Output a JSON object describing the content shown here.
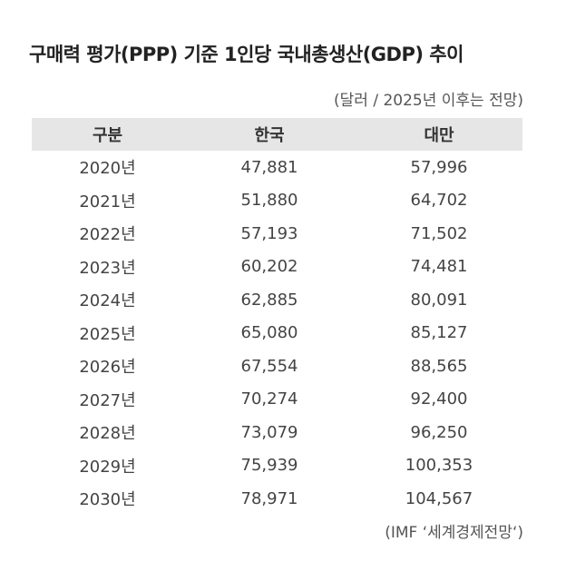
{
  "chart_data": {
    "type": "table",
    "title": "구매력 평가(PPP) 기준 1인당 국내총생산(GDP) 추이",
    "unit_note": "(달러 / 2025년 이후는 전망)",
    "columns": [
      "구분",
      "한국",
      "대만"
    ],
    "rows": [
      [
        "2020년",
        "47,881",
        "57,996"
      ],
      [
        "2021년",
        "51,880",
        "64,702"
      ],
      [
        "2022년",
        "57,193",
        "71,502"
      ],
      [
        "2023년",
        "60,202",
        "74,481"
      ],
      [
        "2024년",
        "62,885",
        "80,091"
      ],
      [
        "2025년",
        "65,080",
        "85,127"
      ],
      [
        "2026년",
        "67,554",
        "88,565"
      ],
      [
        "2027년",
        "70,274",
        "92,400"
      ],
      [
        "2028년",
        "73,079",
        "96,250"
      ],
      [
        "2029년",
        "75,939",
        "100,353"
      ],
      [
        "2030년",
        "78,971",
        "104,567"
      ]
    ],
    "source": "(IMF ‘세계경제전망‘)"
  },
  "colors": {
    "header_bg": "#e6e6e6",
    "title": "#222222",
    "text": "#444444"
  }
}
